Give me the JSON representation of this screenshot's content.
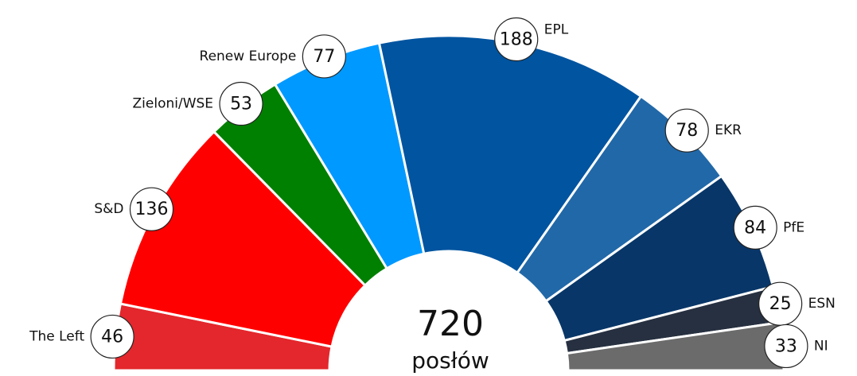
{
  "chart_data": {
    "type": "semicircle",
    "categories": [
      "The Left",
      "S&D",
      "Zieloni/WSE",
      "Renew Europe",
      "EPL",
      "EKR",
      "PfE",
      "ESN",
      "NI"
    ],
    "values": [
      46,
      136,
      53,
      77,
      188,
      78,
      84,
      25,
      33
    ],
    "colors": [
      "#e3272c",
      "#ff0000",
      "#008000",
      "#0099ff",
      "#0054a0",
      "#2168a8",
      "#083668",
      "#263040",
      "#6b6b6b"
    ],
    "total": 720,
    "total_label": "posłów"
  }
}
